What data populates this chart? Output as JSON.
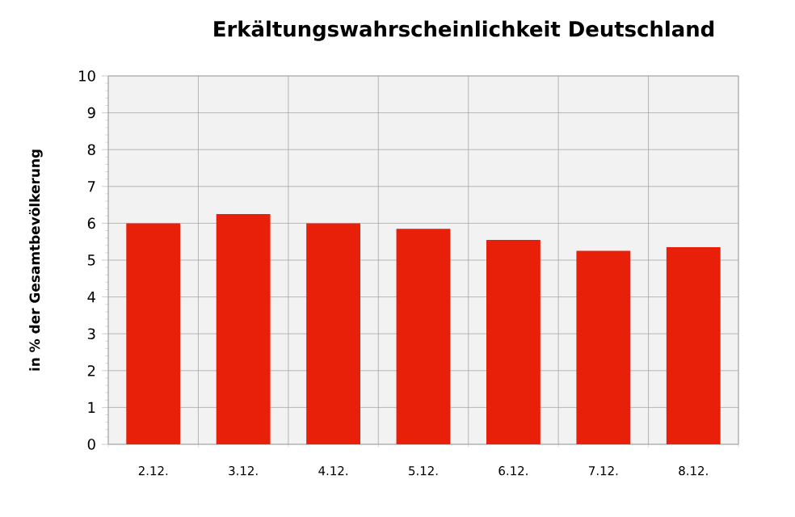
{
  "chart_data": {
    "type": "bar",
    "title": "Erkältungswahrscheinlichkeit  Deutschland",
    "ylabel": "in % der Gesamtbevölkerung",
    "categories": [
      "2.12.",
      "3.12.",
      "4.12.",
      "5.12.",
      "6.12.",
      "7.12.",
      "8.12."
    ],
    "values": [
      6.0,
      6.25,
      6.0,
      5.85,
      5.55,
      5.25,
      5.35
    ],
    "color": "#e8200a",
    "ylim": [
      0,
      10
    ],
    "yticks": [
      0,
      1,
      2,
      3,
      4,
      5,
      6,
      7,
      8,
      9,
      10
    ],
    "grid": true
  }
}
